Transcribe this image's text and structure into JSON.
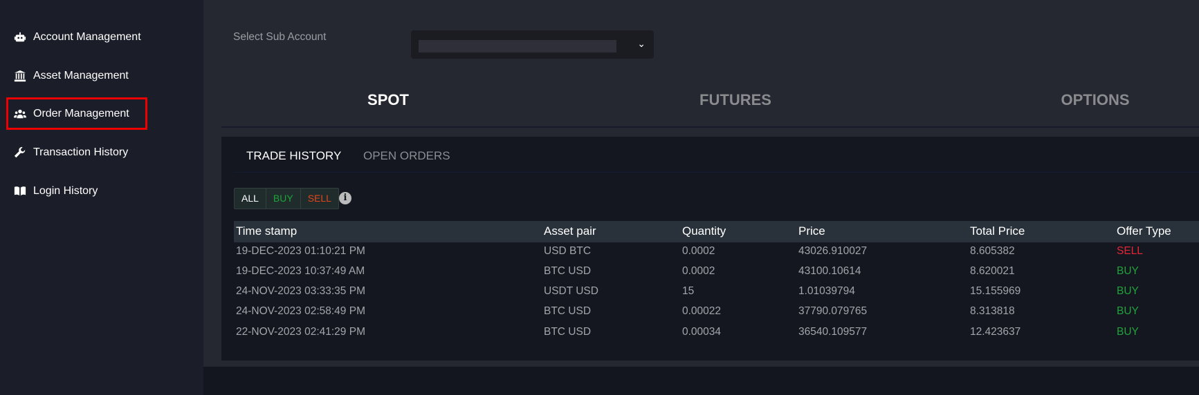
{
  "sidebar": {
    "items": [
      {
        "label": "Account Management",
        "icon": "robot-icon"
      },
      {
        "label": "Asset Management",
        "icon": "bank-icon"
      },
      {
        "label": "Order Management",
        "icon": "users-icon",
        "highlighted": true
      },
      {
        "label": "Transaction History",
        "icon": "wrench-icon"
      },
      {
        "label": "Login History",
        "icon": "book-icon"
      }
    ]
  },
  "header": {
    "sub_account_label": "Select Sub Account",
    "sub_account_value": ""
  },
  "tabs": [
    {
      "label": "SPOT",
      "active": true
    },
    {
      "label": "FUTURES"
    },
    {
      "label": "OPTIONS"
    }
  ],
  "subtabs": [
    {
      "label": "TRADE HISTORY",
      "active": true
    },
    {
      "label": "OPEN ORDERS"
    }
  ],
  "filters": [
    {
      "label": "ALL",
      "color": "#ffffff"
    },
    {
      "label": "BUY",
      "color": "#1fa33a"
    },
    {
      "label": "SELL",
      "color": "#e0461c"
    }
  ],
  "table": {
    "columns": [
      "Time stamp",
      "Asset pair",
      "Quantity",
      "Price",
      "Total Price",
      "Offer Type"
    ],
    "rows": [
      [
        "19-DEC-2023 01:10:21 PM",
        "USD BTC",
        "0.0002",
        "43026.910027",
        "8.605382",
        "SELL"
      ],
      [
        "19-DEC-2023 10:37:49 AM",
        "BTC USD",
        "0.0002",
        "43100.10614",
        "8.620021",
        "BUY"
      ],
      [
        "24-NOV-2023 03:33:35 PM",
        "USDT USD",
        "15",
        "1.01039794",
        "15.155969",
        "BUY"
      ],
      [
        "24-NOV-2023 02:58:49 PM",
        "BTC USD",
        "0.00022",
        "37790.079765",
        "8.313818",
        "BUY"
      ],
      [
        "22-NOV-2023 02:41:29 PM",
        "BTC USD",
        "0.00034",
        "36540.109577",
        "12.423637",
        "BUY"
      ]
    ]
  },
  "colors": {
    "sell": "#e32636",
    "buy": "#1fa33a"
  }
}
